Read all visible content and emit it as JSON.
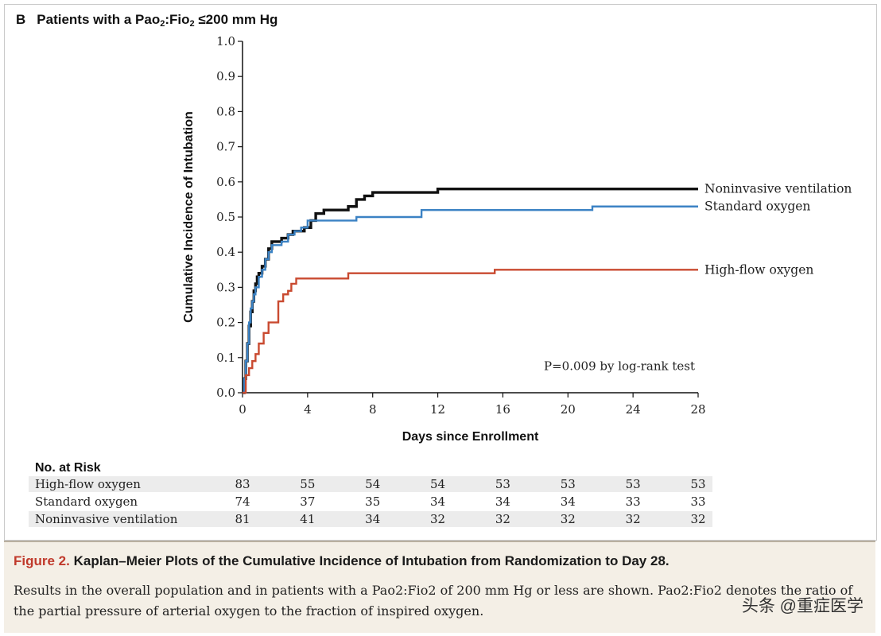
{
  "panel": {
    "letter": "B",
    "title_pre": "Patients with a Pao",
    "title_sub1": "2",
    "title_mid": ":Fio",
    "title_sub2": "2",
    "title_post": " ≤200 mm Hg"
  },
  "chart_data": {
    "type": "line",
    "ylabel": "Cumulative Incidence of Intubation",
    "xlabel": "Days since Enrollment",
    "xlim": [
      0,
      28
    ],
    "ylim": [
      0,
      1
    ],
    "x_ticks": [
      "0",
      "4",
      "8",
      "12",
      "16",
      "20",
      "24",
      "28"
    ],
    "y_ticks": [
      "0.0",
      "0.1",
      "0.2",
      "0.3",
      "0.4",
      "0.5",
      "0.6",
      "0.7",
      "0.8",
      "0.9",
      "1.0"
    ],
    "grid": false,
    "annotation": "P=0.009 by log-rank test",
    "series": [
      {
        "name": "Noninvasive ventilation",
        "color": "#111111",
        "x": [
          0,
          0.1,
          0.2,
          0.3,
          0.4,
          0.5,
          0.6,
          0.7,
          0.8,
          0.9,
          1.0,
          1.2,
          1.4,
          1.6,
          1.8,
          2.0,
          2.4,
          2.8,
          3.1,
          3.5,
          3.8,
          4.2,
          4.5,
          5.0,
          6.0,
          6.5,
          7.0,
          7.5,
          8.0,
          9.0,
          11.5,
          12.0,
          16.0,
          20.0,
          24.0,
          28.0
        ],
        "y": [
          0,
          0.04,
          0.09,
          0.14,
          0.19,
          0.23,
          0.26,
          0.29,
          0.31,
          0.33,
          0.34,
          0.36,
          0.38,
          0.41,
          0.43,
          0.43,
          0.44,
          0.45,
          0.46,
          0.46,
          0.47,
          0.49,
          0.51,
          0.52,
          0.52,
          0.53,
          0.55,
          0.56,
          0.57,
          0.57,
          0.57,
          0.58,
          0.58,
          0.58,
          0.58,
          0.58
        ]
      },
      {
        "name": "Standard oxygen",
        "color": "#3b82c4",
        "x": [
          0,
          0.1,
          0.2,
          0.3,
          0.4,
          0.5,
          0.6,
          0.7,
          0.8,
          1.0,
          1.2,
          1.4,
          1.6,
          1.8,
          2.0,
          2.4,
          2.8,
          3.2,
          3.6,
          4.0,
          5.0,
          6.0,
          7.0,
          10.0,
          11.0,
          15.0,
          21.0,
          21.5,
          28.0
        ],
        "y": [
          0,
          0.04,
          0.09,
          0.14,
          0.2,
          0.24,
          0.26,
          0.28,
          0.3,
          0.33,
          0.35,
          0.38,
          0.4,
          0.42,
          0.42,
          0.43,
          0.45,
          0.46,
          0.47,
          0.49,
          0.49,
          0.49,
          0.5,
          0.5,
          0.52,
          0.52,
          0.52,
          0.53,
          0.53
        ]
      },
      {
        "name": "High-flow oxygen",
        "color": "#c94a30",
        "x": [
          0,
          0.2,
          0.4,
          0.6,
          0.8,
          1.0,
          1.3,
          1.6,
          2.0,
          2.2,
          2.5,
          2.8,
          3.0,
          3.3,
          4.0,
          6.0,
          6.5,
          10.0,
          15.0,
          15.5,
          20.0,
          28.0
        ],
        "y": [
          0,
          0.05,
          0.07,
          0.09,
          0.11,
          0.14,
          0.17,
          0.2,
          0.2,
          0.26,
          0.28,
          0.29,
          0.31,
          0.325,
          0.325,
          0.325,
          0.34,
          0.34,
          0.34,
          0.35,
          0.35,
          0.35
        ]
      }
    ]
  },
  "risk": {
    "title": "No. at Risk",
    "rows": [
      {
        "label": "High-flow oxygen",
        "values": [
          "83",
          "55",
          "54",
          "54",
          "53",
          "53",
          "53",
          "53"
        ]
      },
      {
        "label": "Standard oxygen",
        "values": [
          "74",
          "37",
          "35",
          "34",
          "34",
          "34",
          "33",
          "33"
        ]
      },
      {
        "label": "Noninvasive ventilation",
        "values": [
          "81",
          "41",
          "34",
          "32",
          "32",
          "32",
          "32",
          "32"
        ]
      }
    ]
  },
  "caption": {
    "figure": "Figure 2.",
    "title": " Kaplan–Meier Plots of the Cumulative Incidence of Intubation from Randomization to Day 28.",
    "text": "Results in the overall population and in patients with a Pao2:Fio2 of 200 mm Hg or less are shown. Pao2:Fio2 denotes the ratio of the partial pressure of arterial oxygen to the fraction of inspired oxygen."
  },
  "watermark": "头条 @重症医学"
}
